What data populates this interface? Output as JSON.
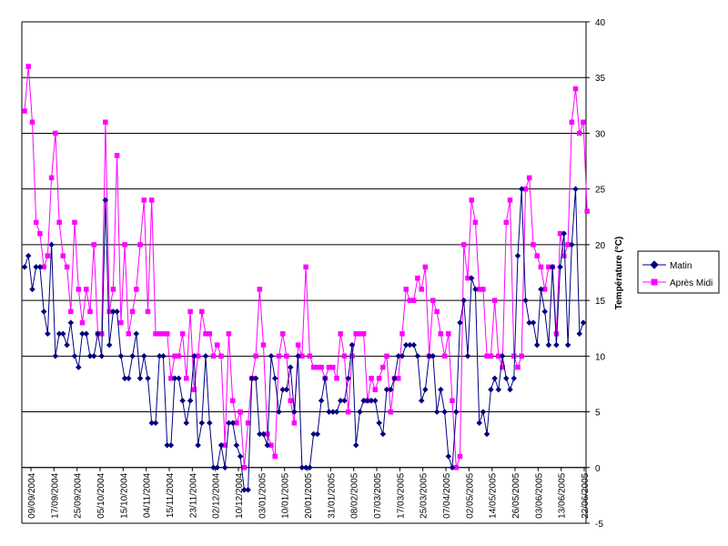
{
  "chart_data": {
    "type": "line",
    "title": "",
    "xlabel": "",
    "ylabel": "Température (°C)",
    "ylim": [
      -5,
      40
    ],
    "yticks": [
      -5,
      0,
      5,
      10,
      15,
      20,
      25,
      30,
      35,
      40
    ],
    "y_axis_position": "right",
    "grid": "horizontal",
    "legend_position": "right",
    "x_tick_labels": [
      "09/09/2004",
      "17/09/2004",
      "25/09/2004",
      "05/10/2004",
      "15/10/2004",
      "04/11/2004",
      "15/11/2004",
      "23/11/2004",
      "02/12/2004",
      "10/12/2004",
      "03/01/2005",
      "10/01/2005",
      "20/01/2005",
      "31/01/2005",
      "08/02/2005",
      "07/03/2005",
      "17/03/2005",
      "25/03/2005",
      "07/04/2005",
      "02/05/2005",
      "14/05/2005",
      "26/05/2005",
      "03/06/2005",
      "13/06/2005",
      "22/06/2005"
    ],
    "series": [
      {
        "name": "Matin",
        "color": "#000080",
        "marker": "diamond",
        "values": [
          18,
          19,
          16,
          18,
          18,
          14,
          12,
          20,
          10,
          12,
          12,
          11,
          13,
          10,
          9,
          12,
          12,
          10,
          10,
          12,
          10,
          24,
          11,
          14,
          14,
          10,
          8,
          8,
          10,
          12,
          8,
          10,
          8,
          4,
          4,
          10,
          10,
          2,
          2,
          8,
          8,
          6,
          4,
          6,
          10,
          2,
          4,
          10,
          4,
          0,
          0,
          2,
          0,
          4,
          4,
          2,
          1,
          -2,
          -2,
          8,
          8,
          3,
          3,
          2,
          10,
          8,
          5,
          7,
          7,
          9,
          5,
          10,
          0,
          0,
          0,
          3,
          3,
          6,
          8,
          5,
          5,
          5,
          6,
          6,
          8,
          11,
          2,
          5,
          6,
          6,
          6,
          6,
          4,
          3,
          7,
          7,
          8,
          10,
          10,
          11,
          11,
          11,
          10,
          6,
          7,
          10,
          10,
          5,
          7,
          5,
          1,
          0,
          5,
          13,
          15,
          10,
          17,
          16,
          4,
          5,
          3,
          7,
          8,
          7,
          10,
          8,
          7,
          8,
          19,
          25,
          15,
          13,
          13,
          11,
          16,
          14,
          11,
          18,
          11,
          18,
          21,
          11,
          20,
          25,
          12,
          13
        ]
      },
      {
        "name": "Après Midi",
        "color": "#FF00FF",
        "marker": "square",
        "values": [
          32,
          36,
          31,
          22,
          21,
          18,
          19,
          26,
          30,
          22,
          19,
          18,
          14,
          22,
          16,
          13,
          16,
          14,
          20,
          12,
          12,
          31,
          14,
          16,
          28,
          13,
          20,
          12,
          14,
          16,
          20,
          24,
          14,
          24,
          12,
          12,
          12,
          12,
          8,
          10,
          10,
          12,
          8,
          14,
          7,
          10,
          14,
          12,
          12,
          10,
          11,
          10,
          2,
          12,
          6,
          4,
          5,
          0,
          4,
          8,
          10,
          16,
          11,
          3,
          2,
          1,
          10,
          12,
          10,
          6,
          4,
          11,
          10,
          18,
          10,
          9,
          9,
          9,
          8,
          9,
          9,
          8,
          12,
          10,
          5,
          10,
          12,
          12,
          12,
          6,
          8,
          7,
          8,
          9,
          10,
          5,
          8,
          8,
          12,
          16,
          15,
          15,
          17,
          16,
          18,
          10,
          15,
          14,
          12,
          10,
          12,
          6,
          0,
          1,
          20,
          17,
          24,
          22,
          16,
          16,
          10,
          10,
          15,
          10,
          9,
          22,
          24,
          10,
          9,
          10,
          25,
          26,
          20,
          19,
          18,
          16,
          18,
          18,
          12,
          21,
          19,
          20,
          31,
          34,
          30,
          31,
          23
        ]
      }
    ]
  }
}
